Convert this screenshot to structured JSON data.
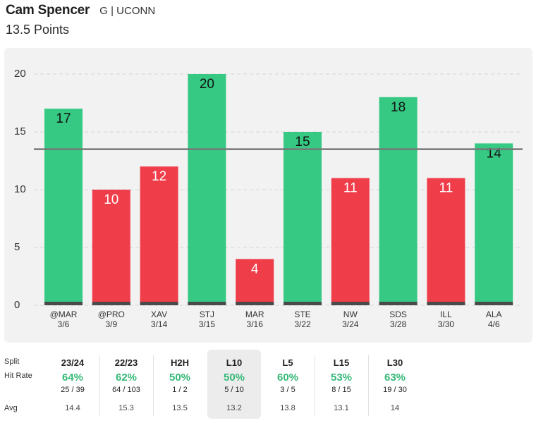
{
  "header": {
    "player_name": "Cam Spencer",
    "player_meta": "G | UCONN",
    "prop_line": "13.5 Points"
  },
  "colors": {
    "over": "#35c983",
    "under": "#ef3d4a",
    "base": "#4a4a4a",
    "line": "#777777",
    "grid": "#d6d6d6",
    "rate_text": "#35b978"
  },
  "chart_data": {
    "type": "bar",
    "title": "",
    "xlabel": "",
    "ylabel": "",
    "ylim": [
      0,
      20
    ],
    "yticks": [
      0,
      5,
      10,
      15,
      20
    ],
    "threshold": 13.5,
    "grid": true,
    "legend": "none",
    "categories": [
      "@MAR",
      "@PRO",
      "XAV",
      "STJ",
      "MAR",
      "STE",
      "NW",
      "SDS",
      "ILL",
      "ALA"
    ],
    "dates": [
      "3/6",
      "3/9",
      "3/14",
      "3/15",
      "3/16",
      "3/22",
      "3/24",
      "3/28",
      "3/30",
      "4/6"
    ],
    "values": [
      17,
      10,
      12,
      20,
      4,
      15,
      11,
      18,
      11,
      14
    ]
  },
  "stats": {
    "labels": {
      "split": "Split",
      "hit_rate": "Hit Rate",
      "avg": "Avg"
    },
    "columns": [
      {
        "split": "23/24",
        "rate": "64%",
        "frac": "25 / 39",
        "avg": "14.4"
      },
      {
        "split": "22/23",
        "rate": "62%",
        "frac": "64 / 103",
        "avg": "15.3"
      },
      {
        "split": "H2H",
        "rate": "50%",
        "frac": "1 / 2",
        "avg": "13.5"
      },
      {
        "split": "L10",
        "rate": "50%",
        "frac": "5 / 10",
        "avg": "13.2",
        "selected": true
      },
      {
        "split": "L5",
        "rate": "60%",
        "frac": "3 / 5",
        "avg": "13.8"
      },
      {
        "split": "L15",
        "rate": "53%",
        "frac": "8 / 15",
        "avg": "13.1"
      },
      {
        "split": "L30",
        "rate": "63%",
        "frac": "19 / 30",
        "avg": "14"
      }
    ]
  }
}
